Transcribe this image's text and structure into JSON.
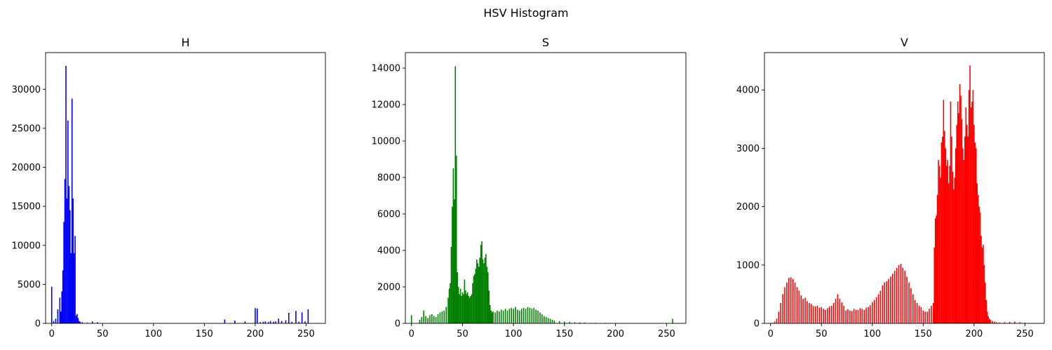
{
  "figure": {
    "suptitle": "HSV Histogram"
  },
  "chart_data": [
    {
      "type": "bar",
      "title": "H",
      "xlabel": "",
      "ylabel": "",
      "color": "#0000ff",
      "xlim": [
        -6,
        269
      ],
      "ylim": [
        0,
        34700
      ],
      "xticks": [
        0,
        50,
        100,
        150,
        200,
        250
      ],
      "yticks": [
        0,
        5000,
        10000,
        15000,
        20000,
        25000,
        30000
      ],
      "grid": false,
      "x": [
        0,
        2,
        4,
        6,
        8,
        9,
        10,
        11,
        12,
        13,
        14,
        15,
        16,
        17,
        18,
        19,
        20,
        21,
        22,
        23,
        24,
        25,
        26,
        27,
        28,
        30,
        35,
        40,
        45,
        170,
        180,
        190,
        200,
        202,
        205,
        208,
        210,
        213,
        215,
        218,
        220,
        223,
        226,
        230,
        233,
        236,
        240,
        243,
        246,
        249,
        252
      ],
      "values": [
        4700,
        300,
        600,
        1800,
        3300,
        1500,
        4100,
        6800,
        13000,
        18500,
        33000,
        16000,
        26000,
        17600,
        14500,
        9000,
        28800,
        16000,
        9000,
        11200,
        1000,
        1200,
        700,
        300,
        200,
        150,
        100,
        250,
        150,
        500,
        350,
        250,
        1950,
        1900,
        150,
        200,
        250,
        150,
        300,
        200,
        250,
        600,
        300,
        400,
        1350,
        200,
        1600,
        200,
        1400,
        250,
        1800
      ]
    },
    {
      "type": "bar",
      "title": "S",
      "xlabel": "",
      "ylabel": "",
      "color": "#008000",
      "xlim": [
        -6,
        269
      ],
      "ylim": [
        0,
        14850
      ],
      "xticks": [
        0,
        50,
        100,
        150,
        200,
        250
      ],
      "yticks": [
        0,
        2000,
        4000,
        6000,
        8000,
        10000,
        12000,
        14000
      ],
      "grid": false,
      "x": [
        0,
        8,
        10,
        12,
        14,
        16,
        18,
        20,
        22,
        24,
        26,
        28,
        30,
        32,
        34,
        36,
        37,
        38,
        39,
        40,
        41,
        42,
        43,
        44,
        45,
        46,
        47,
        48,
        49,
        50,
        51,
        52,
        53,
        54,
        55,
        56,
        57,
        58,
        59,
        60,
        61,
        62,
        63,
        64,
        65,
        66,
        67,
        68,
        69,
        70,
        71,
        72,
        73,
        74,
        75,
        76,
        77,
        78,
        79,
        80,
        82,
        84,
        86,
        88,
        90,
        92,
        94,
        96,
        98,
        100,
        102,
        104,
        106,
        108,
        110,
        112,
        114,
        116,
        118,
        120,
        122,
        124,
        126,
        128,
        130,
        132,
        134,
        136,
        138,
        140,
        145,
        150,
        155,
        160,
        165,
        170,
        180,
        190,
        200,
        210,
        220,
        230,
        240,
        256
      ],
      "values": [
        450,
        200,
        350,
        700,
        400,
        300,
        450,
        500,
        400,
        350,
        500,
        600,
        650,
        700,
        900,
        1400,
        1900,
        2200,
        4200,
        6400,
        8500,
        6800,
        14100,
        9200,
        2800,
        2000,
        1600,
        1900,
        1500,
        1700,
        1600,
        2400,
        1800,
        1600,
        1700,
        1500,
        1400,
        1500,
        1600,
        2200,
        2600,
        2700,
        3000,
        3500,
        3300,
        3100,
        3600,
        4300,
        4500,
        3500,
        3300,
        3600,
        3800,
        3100,
        2800,
        1800,
        1000,
        700,
        600,
        650,
        600,
        700,
        650,
        750,
        700,
        800,
        700,
        800,
        850,
        800,
        900,
        750,
        700,
        800,
        850,
        800,
        900,
        850,
        800,
        850,
        750,
        700,
        600,
        500,
        400,
        350,
        300,
        250,
        200,
        150,
        120,
        100,
        80,
        60,
        50,
        40,
        30,
        25,
        20,
        15,
        10,
        8,
        5,
        250
      ]
    },
    {
      "type": "bar",
      "title": "V",
      "xlabel": "",
      "ylabel": "",
      "color": "#ff0000",
      "xlim": [
        -6,
        269
      ],
      "ylim": [
        0,
        4640
      ],
      "xticks": [
        0,
        50,
        100,
        150,
        200,
        250
      ],
      "yticks": [
        0,
        1000,
        2000,
        3000,
        4000
      ],
      "grid": false,
      "x": [
        0,
        2,
        4,
        6,
        8,
        10,
        12,
        14,
        16,
        18,
        20,
        22,
        24,
        26,
        28,
        30,
        32,
        34,
        36,
        38,
        40,
        42,
        44,
        46,
        48,
        50,
        52,
        54,
        56,
        58,
        60,
        62,
        64,
        66,
        68,
        70,
        72,
        74,
        76,
        78,
        80,
        82,
        84,
        86,
        88,
        90,
        92,
        94,
        96,
        98,
        100,
        102,
        104,
        106,
        108,
        110,
        112,
        114,
        116,
        118,
        120,
        122,
        124,
        126,
        128,
        130,
        132,
        134,
        136,
        138,
        140,
        142,
        144,
        146,
        148,
        150,
        152,
        154,
        156,
        158,
        160,
        161,
        162,
        163,
        164,
        165,
        166,
        167,
        168,
        169,
        170,
        171,
        172,
        173,
        174,
        175,
        176,
        177,
        178,
        179,
        180,
        181,
        182,
        183,
        184,
        185,
        186,
        187,
        188,
        189,
        190,
        191,
        192,
        193,
        194,
        195,
        196,
        197,
        198,
        199,
        200,
        201,
        202,
        203,
        204,
        205,
        206,
        207,
        208,
        209,
        210,
        211,
        212,
        213,
        214,
        215,
        216,
        218,
        220,
        222,
        225,
        230,
        235,
        240,
        245,
        250
      ],
      "values": [
        0,
        10,
        30,
        80,
        200,
        350,
        500,
        620,
        700,
        780,
        790,
        760,
        700,
        620,
        560,
        480,
        420,
        440,
        380,
        350,
        330,
        300,
        290,
        300,
        270,
        280,
        250,
        230,
        260,
        290,
        300,
        350,
        420,
        500,
        420,
        360,
        300,
        220,
        240,
        220,
        210,
        250,
        230,
        230,
        260,
        250,
        230,
        270,
        280,
        310,
        360,
        400,
        450,
        500,
        560,
        650,
        700,
        720,
        760,
        800,
        850,
        900,
        950,
        1000,
        1020,
        950,
        900,
        800,
        700,
        600,
        500,
        400,
        350,
        300,
        280,
        220,
        200,
        200,
        250,
        300,
        350,
        1300,
        1800,
        1850,
        2200,
        2800,
        2700,
        2500,
        3100,
        3200,
        3830,
        3300,
        3000,
        2700,
        2800,
        2400,
        2700,
        3800,
        3200,
        2600,
        2300,
        2500,
        3000,
        3400,
        3800,
        3600,
        4100,
        3900,
        3500,
        3000,
        2800,
        3200,
        3700,
        3400,
        3200,
        4000,
        4420,
        3700,
        3800,
        4000,
        3400,
        3100,
        3000,
        2400,
        2200,
        2000,
        1900,
        1500,
        1300,
        1350,
        1000,
        700,
        400,
        200,
        120,
        80,
        60,
        40,
        30,
        20,
        15,
        20,
        25,
        30,
        20,
        10
      ]
    }
  ]
}
